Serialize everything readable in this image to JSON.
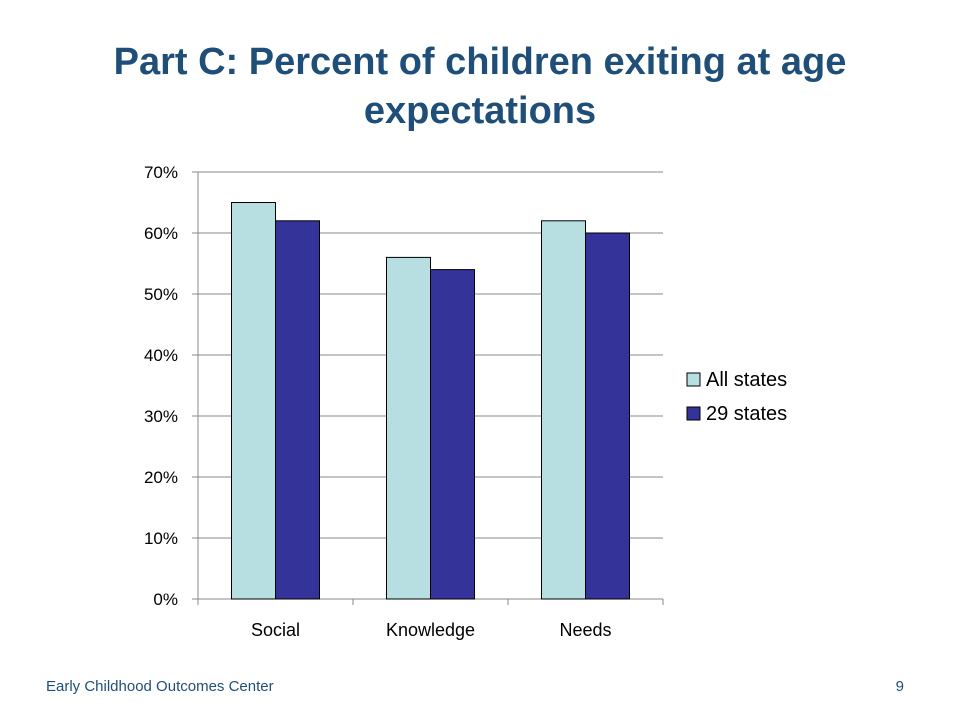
{
  "slide": {
    "title_line1": "Part C: Percent of children exiting at age",
    "title_line2": "expectations",
    "footer_left": "Early Childhood Outcomes Center",
    "page_number": "9"
  },
  "chart_data": {
    "type": "bar",
    "categories": [
      "Social",
      "Knowledge",
      "Needs"
    ],
    "series": [
      {
        "name": "All states",
        "values": [
          65,
          56,
          62
        ],
        "color": "#b7dee0"
      },
      {
        "name": "29 states",
        "values": [
          62,
          54,
          60
        ],
        "color": "#333399"
      }
    ],
    "title": "Part C: Percent of children exiting at age expectations",
    "xlabel": "",
    "ylabel": "",
    "ylim": [
      0,
      70
    ],
    "ytick_step": 10,
    "ytick_format": "percent",
    "grid": true,
    "legend": "right"
  }
}
